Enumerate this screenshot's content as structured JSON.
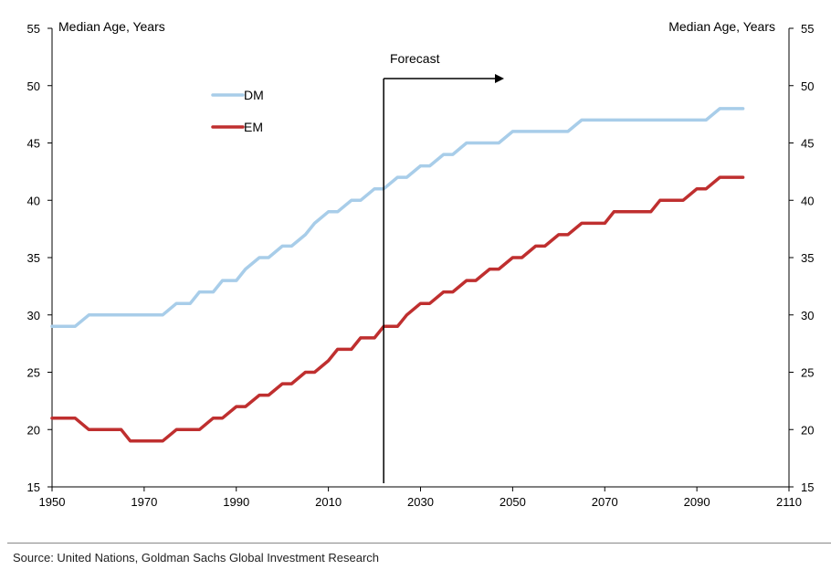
{
  "chart_data": {
    "type": "line",
    "title": "",
    "left_axis_title": "Median Age, Years",
    "right_axis_title": "Median Age, Years",
    "xlabel": "",
    "ylabel": "Median Age, Years",
    "xlim": [
      1950,
      2110
    ],
    "ylim": [
      15,
      55
    ],
    "x_ticks": [
      1950,
      1970,
      1990,
      2010,
      2030,
      2050,
      2070,
      2090,
      2110
    ],
    "y_ticks": [
      15,
      20,
      25,
      30,
      35,
      40,
      45,
      50,
      55
    ],
    "legend_position": "upper-left",
    "grid": false,
    "annotation": {
      "text": "Forecast",
      "x": 2022
    },
    "series": [
      {
        "name": "DM",
        "color": "#a8cde9",
        "x": [
          1950,
          1955,
          1958,
          1960,
          1965,
          1970,
          1974,
          1977,
          1980,
          1982,
          1985,
          1987,
          1990,
          1992,
          1995,
          1997,
          2000,
          2002,
          2005,
          2007,
          2010,
          2012,
          2015,
          2017,
          2020,
          2022,
          2025,
          2027,
          2030,
          2032,
          2035,
          2037,
          2040,
          2042,
          2045,
          2047,
          2050,
          2052,
          2055,
          2057,
          2060,
          2062,
          2065,
          2070,
          2075,
          2080,
          2085,
          2090,
          2092,
          2095,
          2100
        ],
        "values": [
          29,
          29,
          30,
          30,
          30,
          30,
          30,
          31,
          31,
          32,
          32,
          33,
          33,
          34,
          35,
          35,
          36,
          36,
          37,
          38,
          39,
          39,
          40,
          40,
          41,
          41,
          42,
          42,
          43,
          43,
          44,
          44,
          45,
          45,
          45,
          45,
          46,
          46,
          46,
          46,
          46,
          46,
          47,
          47,
          47,
          47,
          47,
          47,
          47,
          48,
          48
        ]
      },
      {
        "name": "EM",
        "color": "#bf2f2f",
        "x": [
          1950,
          1953,
          1955,
          1958,
          1960,
          1962,
          1965,
          1967,
          1970,
          1972,
          1974,
          1977,
          1980,
          1982,
          1985,
          1987,
          1990,
          1992,
          1995,
          1997,
          2000,
          2002,
          2005,
          2007,
          2010,
          2012,
          2015,
          2017,
          2020,
          2022,
          2025,
          2027,
          2030,
          2032,
          2035,
          2037,
          2040,
          2042,
          2045,
          2047,
          2050,
          2052,
          2055,
          2057,
          2060,
          2062,
          2065,
          2070,
          2072,
          2075,
          2080,
          2082,
          2085,
          2087,
          2090,
          2092,
          2095,
          2100
        ],
        "values": [
          21,
          21,
          21,
          20,
          20,
          20,
          20,
          19,
          19,
          19,
          19,
          20,
          20,
          20,
          21,
          21,
          22,
          22,
          23,
          23,
          24,
          24,
          25,
          25,
          26,
          27,
          27,
          28,
          28,
          29,
          29,
          30,
          31,
          31,
          32,
          32,
          33,
          33,
          34,
          34,
          35,
          35,
          36,
          36,
          37,
          37,
          38,
          38,
          39,
          39,
          39,
          40,
          40,
          40,
          41,
          41,
          42,
          42
        ]
      }
    ]
  },
  "source": "Source: United Nations, Goldman Sachs Global Investment Research"
}
